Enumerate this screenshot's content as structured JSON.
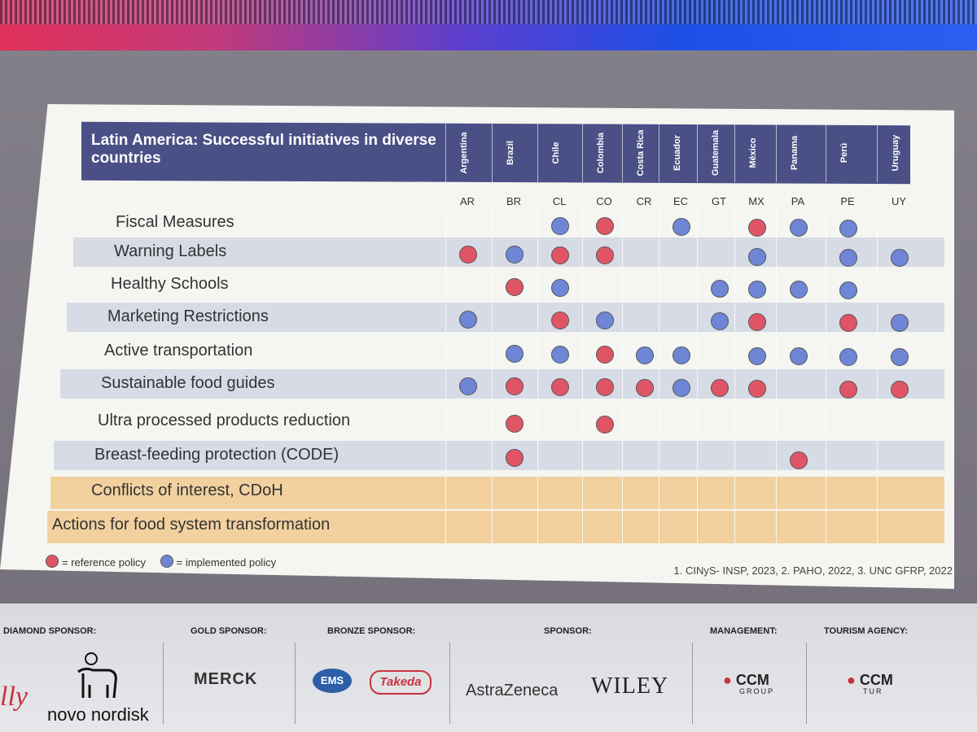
{
  "slide": {
    "title": "Latin America: Successful initiatives in diverse countries",
    "countries": [
      {
        "full": "Argentina",
        "code": "AR"
      },
      {
        "full": "Brazil",
        "code": "BR"
      },
      {
        "full": "Chile",
        "code": "CL"
      },
      {
        "full": "Colombia",
        "code": "CO"
      },
      {
        "full": "Costa Rica",
        "code": "CR"
      },
      {
        "full": "Ecuador",
        "code": "EC"
      },
      {
        "full": "Guatemala",
        "code": "GT"
      },
      {
        "full": "México",
        "code": "MX"
      },
      {
        "full": "Panama",
        "code": "PA"
      },
      {
        "full": "Perú",
        "code": "PE"
      },
      {
        "full": "Uruguay",
        "code": "UY"
      }
    ],
    "rows": [
      {
        "label": "Fiscal Measures",
        "cells": [
          "",
          "",
          "imp",
          "ref",
          "",
          "imp",
          "",
          "ref",
          "imp",
          "imp",
          ""
        ]
      },
      {
        "label": "Warning Labels",
        "cells": [
          "ref",
          "imp",
          "ref",
          "ref",
          "",
          "",
          "",
          "imp",
          "",
          "imp",
          "imp"
        ]
      },
      {
        "label": "Healthy Schools",
        "cells": [
          "",
          "ref",
          "imp",
          "",
          "",
          "",
          "imp",
          "imp",
          "imp",
          "imp",
          ""
        ]
      },
      {
        "label": "Marketing Restrictions",
        "cells": [
          "imp",
          "",
          "ref",
          "imp",
          "",
          "",
          "imp",
          "ref",
          "",
          "ref",
          "imp"
        ]
      },
      {
        "label": "Active transportation",
        "cells": [
          "",
          "imp",
          "imp",
          "ref",
          "imp",
          "imp",
          "",
          "imp",
          "imp",
          "imp",
          "imp"
        ]
      },
      {
        "label": "Sustainable food guides",
        "cells": [
          "imp",
          "ref",
          "ref",
          "ref",
          "ref",
          "imp",
          "ref",
          "ref",
          "",
          "ref",
          "ref"
        ]
      },
      {
        "label": "Ultra processed products reduction",
        "cells": [
          "",
          "ref",
          "",
          "ref",
          "",
          "",
          "",
          "",
          "",
          "",
          ""
        ]
      },
      {
        "label": "Breast-feeding protection (CODE)",
        "cells": [
          "",
          "ref",
          "",
          "",
          "",
          "",
          "",
          "",
          "ref",
          "",
          ""
        ]
      },
      {
        "label": "Conflicts of interest, CDoH",
        "cells": [
          "",
          "",
          "",
          "",
          "",
          "",
          "",
          "",
          "",
          "",
          ""
        ]
      },
      {
        "label": "Actions for food system transformation",
        "cells": [
          "",
          "",
          "",
          "",
          "",
          "",
          "",
          "",
          "",
          "",
          ""
        ]
      }
    ],
    "legend": {
      "reference": "= reference policy",
      "implemented": "= implemented policy"
    },
    "references": "1. CINyS- INSP, 2023, 2. PAHO, 2022, 3. UNC GFRP, 2022",
    "colors": {
      "reference": "#e05565",
      "implemented": "#6f86d6",
      "header": "#4a4f86",
      "highlight_row": "#f2d19f"
    }
  },
  "sponsors": {
    "diamond": "DIAMOND SPONSOR:",
    "gold": "GOLD SPONSOR:",
    "bronze": "BRONZE SPONSOR:",
    "sponsor": "SPONSOR:",
    "management": "MANAGEMENT:",
    "tourism": "TOURISM AGENCY:",
    "logos": {
      "lilly": "lly",
      "novo": "novo nordisk",
      "merck": "MERCK",
      "ems": "EMS",
      "takeda": "Takeda",
      "astrazeneca": "AstraZeneca",
      "wiley": "WILEY",
      "ccm_group": "CCM",
      "ccm_group_sub": "GROUP",
      "ccm_tur": "CCM",
      "ccm_tur_sub": "TUR"
    }
  }
}
